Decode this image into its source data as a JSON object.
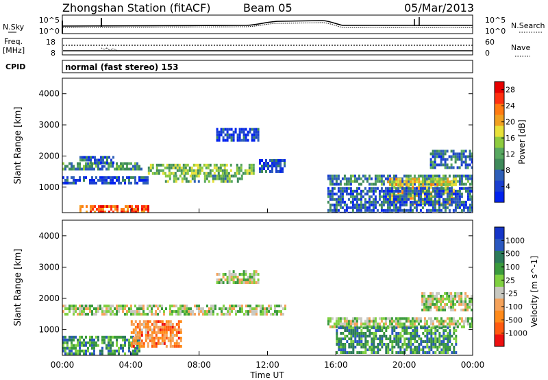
{
  "header": {
    "station": "Zhongshan Station (fitACF)",
    "beam": "Beam 05",
    "date": "05/Mar/2013"
  },
  "panels": {
    "nsky": {
      "left_label": "N.Sky",
      "right_label": "N.Search",
      "left_ticks": [
        "10^5",
        "10^0"
      ],
      "right_ticks": [
        "10^5",
        "10^0"
      ]
    },
    "freq": {
      "left_label_1": "Freq.",
      "left_label_2": "[MHz]",
      "right_label": "Nave",
      "left_ticks": [
        "18",
        "8"
      ],
      "right_ticks": [
        "60",
        "0"
      ]
    },
    "cpid": {
      "label": "CPID",
      "mode_text": "normal (fast stereo) 153"
    }
  },
  "colors": {
    "power": [
      "#0022ee",
      "#1a3fd0",
      "#2e5fb8",
      "#3f8a5a",
      "#58a860",
      "#8ecb3e",
      "#e8e13a",
      "#f0a020",
      "#ff7a10",
      "#ff3010",
      "#e80000"
    ],
    "velocity": [
      "#1535c8",
      "#2a58c0",
      "#2c7a5a",
      "#3a9a3c",
      "#7fd040",
      "#c8c8c0",
      "#f5a25a",
      "#ff8a1a",
      "#ff5a10",
      "#ee1010"
    ]
  },
  "chart_data": [
    {
      "type": "heatmap",
      "title": "",
      "ylabel": "Slant Range [km]",
      "xlabel": "Time UT",
      "x_ticks": [
        "00:00",
        "04:00",
        "08:00",
        "12:00",
        "16:00",
        "20:00",
        "00:00"
      ],
      "y_ticks": [
        "1000",
        "2000",
        "3000",
        "4000"
      ],
      "x_range_hours": [
        0,
        24
      ],
      "y_range_km": [
        180,
        4500
      ],
      "colorbar": {
        "label": "Power [dB]",
        "ticks": [
          "4",
          "8",
          "12",
          "16",
          "20",
          "24",
          "28"
        ],
        "range": [
          0,
          30
        ]
      },
      "echo_regions": [
        {
          "t0": 0.0,
          "t1": 4.6,
          "r0": 1550,
          "r1": 1800,
          "level": 0.35
        },
        {
          "t0": 1.0,
          "t1": 3.0,
          "r0": 1800,
          "r1": 2000,
          "level": 0.2
        },
        {
          "t0": 0.0,
          "t1": 5.0,
          "r0": 1150,
          "r1": 1350,
          "level": 0.15
        },
        {
          "t0": 1.0,
          "t1": 5.0,
          "r0": 230,
          "r1": 420,
          "level": 0.85
        },
        {
          "t0": 5.0,
          "t1": 11.2,
          "r0": 1400,
          "r1": 1750,
          "level": 0.45
        },
        {
          "t0": 6.0,
          "t1": 10.5,
          "r0": 1150,
          "r1": 1400,
          "level": 0.4
        },
        {
          "t0": 9.0,
          "t1": 11.5,
          "r0": 2500,
          "r1": 2900,
          "level": 0.15
        },
        {
          "t0": 11.5,
          "t1": 13.0,
          "r0": 1500,
          "r1": 1900,
          "level": 0.15
        },
        {
          "t0": 15.5,
          "t1": 24.0,
          "r0": 1050,
          "r1": 1400,
          "level": 0.3
        },
        {
          "t0": 19.0,
          "t1": 23.0,
          "r0": 450,
          "r1": 1300,
          "level": 0.6
        },
        {
          "t0": 21.5,
          "t1": 24.0,
          "r0": 1600,
          "r1": 2200,
          "level": 0.25
        },
        {
          "t0": 15.5,
          "t1": 24.0,
          "r0": 200,
          "r1": 1000,
          "level": 0.2
        }
      ]
    },
    {
      "type": "heatmap",
      "title": "",
      "ylabel": "Slant Range [km]",
      "xlabel": "Time UT",
      "x_ticks": [
        "00:00",
        "04:00",
        "08:00",
        "12:00",
        "16:00",
        "20:00",
        "00:00"
      ],
      "y_ticks": [
        "1000",
        "2000",
        "3000",
        "4000"
      ],
      "x_range_hours": [
        0,
        24
      ],
      "y_range_km": [
        180,
        4500
      ],
      "colorbar": {
        "label": "Velocity [m s^-1]",
        "ticks": [
          "1000",
          "500",
          "100",
          "25",
          "-25",
          "-100",
          "-500",
          "-1000"
        ]
      },
      "echo_regions": [
        {
          "t0": 0.0,
          "t1": 13.0,
          "r0": 1450,
          "r1": 1800,
          "level": 0.5
        },
        {
          "t0": 0.0,
          "t1": 4.5,
          "r0": 200,
          "r1": 800,
          "level": 0.3
        },
        {
          "t0": 4.0,
          "t1": 7.0,
          "r0": 500,
          "r1": 1300,
          "level": 0.75
        },
        {
          "t0": 9.0,
          "t1": 11.5,
          "r0": 2500,
          "r1": 2900,
          "level": 0.5
        },
        {
          "t0": 15.5,
          "t1": 24.0,
          "r0": 1100,
          "r1": 1400,
          "level": 0.5
        },
        {
          "t0": 16.0,
          "t1": 23.0,
          "r0": 300,
          "r1": 1100,
          "level": 0.3
        },
        {
          "t0": 21.0,
          "t1": 24.0,
          "r0": 1600,
          "r1": 2200,
          "level": 0.5
        }
      ]
    }
  ]
}
